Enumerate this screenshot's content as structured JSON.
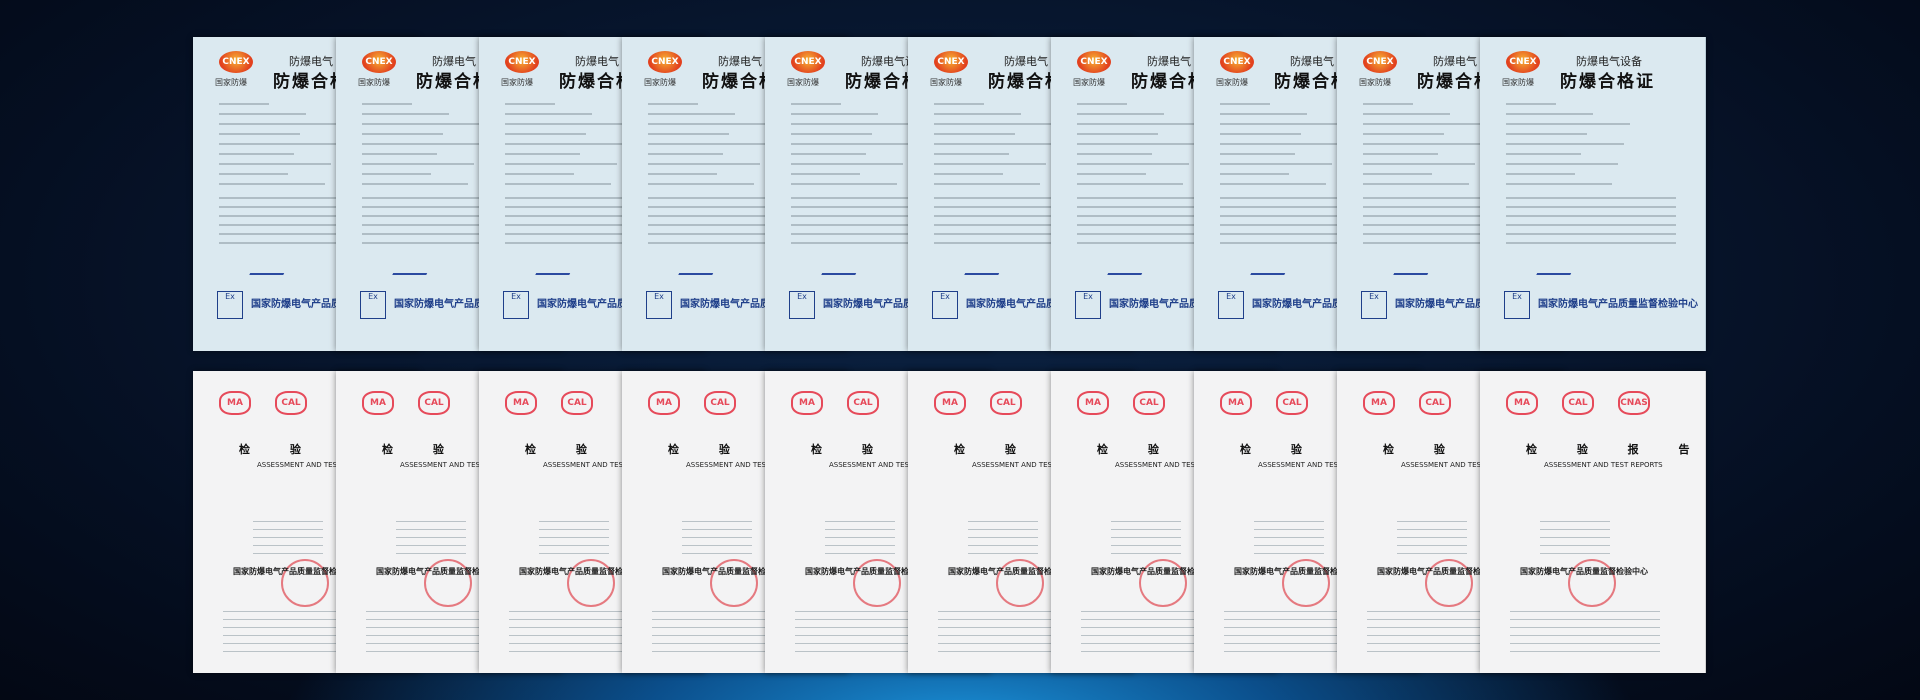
{
  "certificates": [
    {
      "logo": "CNEX",
      "brand": "国家防爆",
      "category": "防爆电气",
      "title": "防爆合格证",
      "issuer": "国家防爆电气产品质量监督检验中心"
    },
    {
      "logo": "CNEX",
      "brand": "国家防爆",
      "category": "防爆电气",
      "title": "防爆合格证",
      "issuer": "国家防爆电气产品质量监督检验中心"
    },
    {
      "logo": "CNEX",
      "brand": "国家防爆",
      "category": "防爆电气",
      "title": "防爆合格证",
      "issuer": "国家防爆电气产品质量监督检验中心"
    },
    {
      "logo": "CNEX",
      "brand": "国家防爆",
      "category": "防爆电气",
      "title": "防爆合格证",
      "issuer": "国家防爆电气产品质量监督检验中心"
    },
    {
      "logo": "CNEX",
      "brand": "国家防爆",
      "category": "防爆电气设",
      "title": "防爆合格证",
      "issuer": "国家防爆电气产品质量监督检验中心"
    },
    {
      "logo": "CNEX",
      "brand": "国家防爆",
      "category": "防爆电气",
      "title": "防爆合格证",
      "issuer": "国家防爆电气产品质量监督检验中心"
    },
    {
      "logo": "CNEX",
      "brand": "国家防爆",
      "category": "防爆电气",
      "title": "防爆合格证",
      "issuer": "国家防爆电气产品质量监督检验中心"
    },
    {
      "logo": "CNEX",
      "brand": "国家防爆",
      "category": "防爆电气",
      "title": "防爆合格证",
      "issuer": "国家防爆电气产品质量监督检验中心"
    },
    {
      "logo": "CNEX",
      "brand": "国家防爆",
      "category": "防爆电气",
      "title": "防爆合格证",
      "issuer": "国家防爆电气产品质量监督检验中心"
    },
    {
      "logo": "CNEX",
      "brand": "国家防爆",
      "category": "防爆电气设备",
      "title": "防爆合格证",
      "issuer": "国家防爆电气产品质量监督检验中心"
    }
  ],
  "reports": [
    {
      "marks": [
        "MA",
        "CAL"
      ],
      "title": "检 验 报 告",
      "subtitle": "ASSESSMENT AND TEST REPORTS",
      "issuer": "国家防爆电气产品质量监督检验中心"
    },
    {
      "marks": [
        "MA",
        "CAL"
      ],
      "title": "检 验 报 告",
      "subtitle": "ASSESSMENT AND TEST REPORTS",
      "issuer": "国家防爆电气产品质量监督检验中心"
    },
    {
      "marks": [
        "MA",
        "CAL"
      ],
      "title": "检 验 报 告",
      "subtitle": "ASSESSMENT AND TEST REPORTS",
      "issuer": "国家防爆电气产品质量监督检验中心"
    },
    {
      "marks": [
        "MA",
        "CAL"
      ],
      "title": "检 验 报 告",
      "subtitle": "ASSESSMENT AND TEST REPORTS",
      "issuer": "国家防爆电气产品质量监督检验中心"
    },
    {
      "marks": [
        "MA",
        "CAL"
      ],
      "title": "检 验 报 告",
      "subtitle": "ASSESSMENT AND TEST REPORTS",
      "issuer": "国家防爆电气产品质量监督检验中心"
    },
    {
      "marks": [
        "MA",
        "CAL"
      ],
      "title": "检 验 报 告",
      "subtitle": "ASSESSMENT AND TEST REPORTS",
      "issuer": "国家防爆电气产品质量监督检验中心"
    },
    {
      "marks": [
        "MA",
        "CAL"
      ],
      "title": "检 验 报 告",
      "subtitle": "ASSESSMENT AND TEST REPORTS",
      "issuer": "国家防爆电气产品质量监督检验中心"
    },
    {
      "marks": [
        "MA",
        "CAL"
      ],
      "title": "检 验 报 告",
      "subtitle": "ASSESSMENT AND TEST REPORTS",
      "issuer": "国家防爆电气产品质量监督检验中心"
    },
    {
      "marks": [
        "MA",
        "CAL"
      ],
      "title": "检 验 报 告",
      "subtitle": "ASSESSMENT AND TEST REPORTS",
      "issuer": "国家防爆电气产品质量监督检验中心"
    },
    {
      "marks": [
        "MA",
        "CAL",
        "CNAS"
      ],
      "title": "检 验 报 告",
      "subtitle": "ASSESSMENT AND TEST REPORTS",
      "issuer": "国家防爆电气产品质量监督检验中心"
    }
  ]
}
